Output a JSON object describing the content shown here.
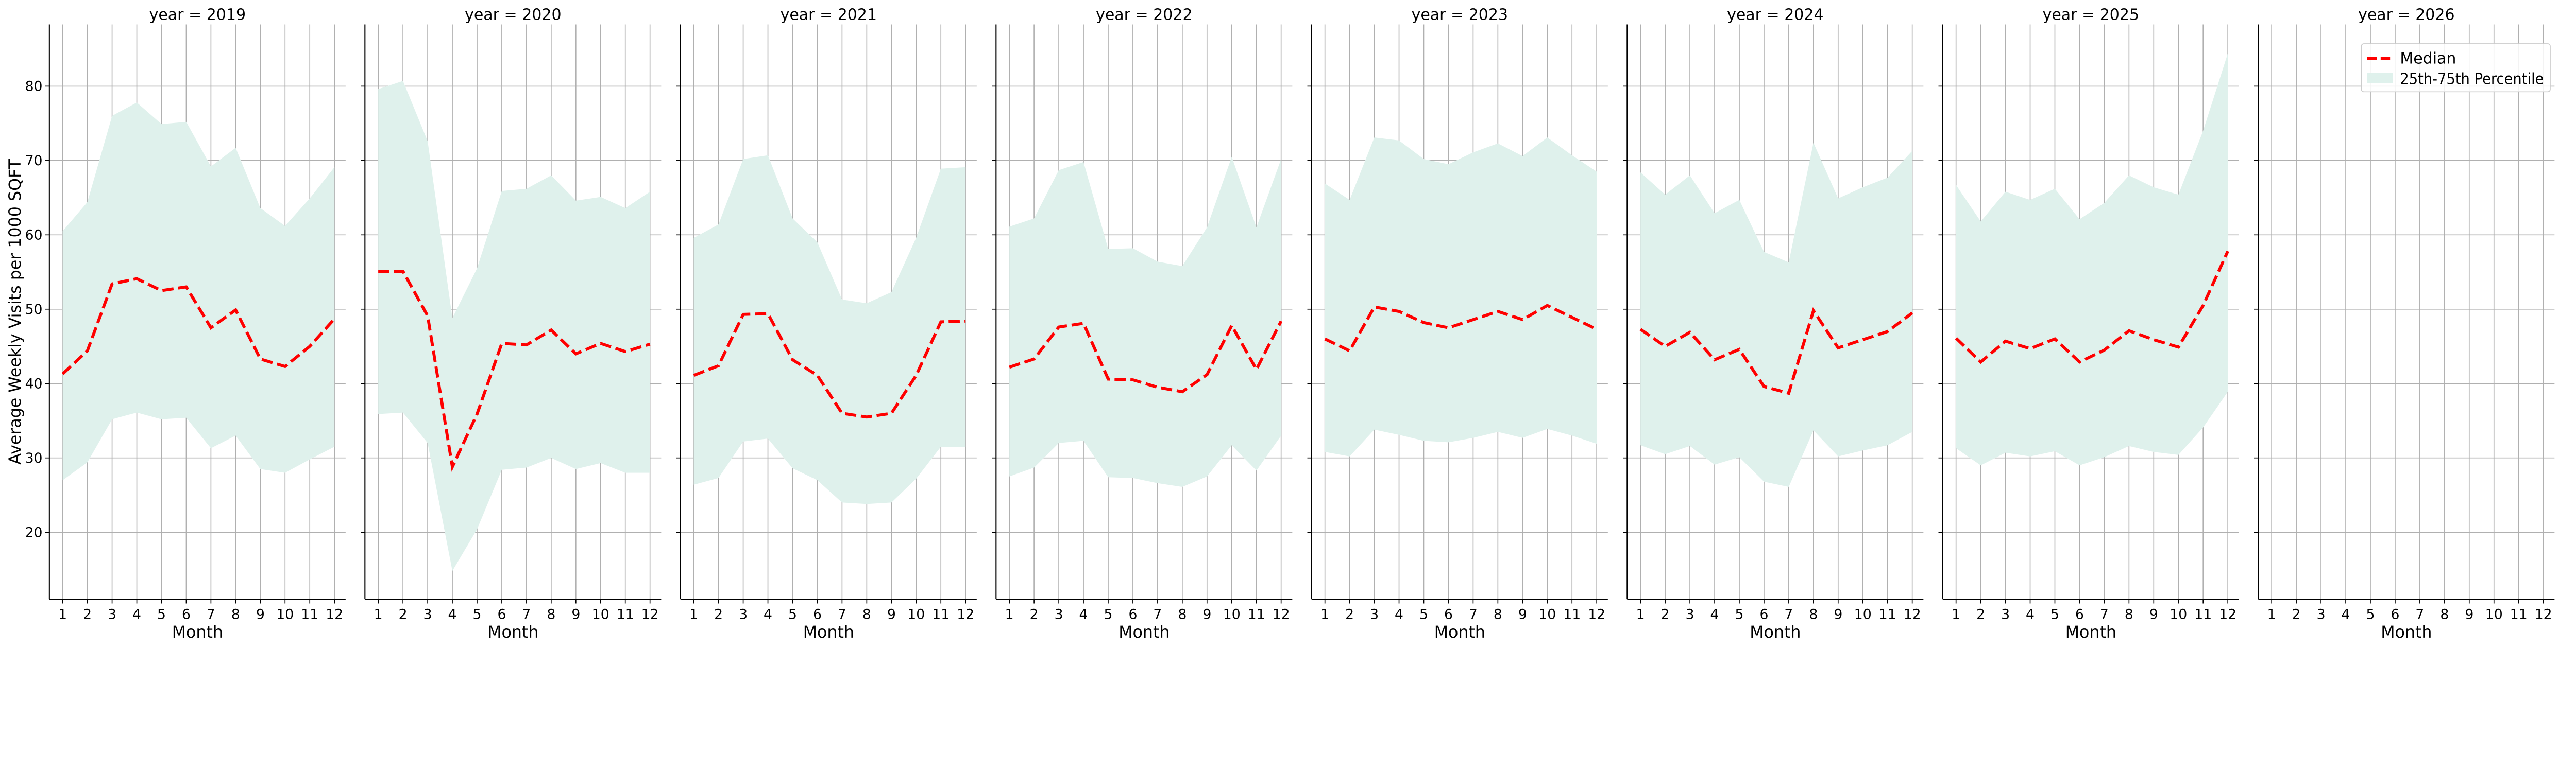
{
  "chart_data": {
    "type": "line",
    "ylabel": "Average Weekly Visits per 1000 SQFT",
    "xlabel": "Month",
    "ylim": [
      11,
      88.3
    ],
    "y_ticks": [
      "20",
      "30",
      "40",
      "50",
      "60",
      "70",
      "80"
    ],
    "x": [
      1,
      2,
      3,
      4,
      5,
      6,
      7,
      8,
      9,
      10,
      11,
      12
    ],
    "x_ticks": [
      "1",
      "2",
      "3",
      "4",
      "5",
      "6",
      "7",
      "8",
      "9",
      "10",
      "11",
      "12"
    ],
    "grid": true,
    "legend": {
      "position": "top-right",
      "median_label": "Median",
      "band_label": "25th-75th Percentile"
    },
    "colors": {
      "median": "#ff0000",
      "band": "#dff1ec"
    },
    "facets": [
      {
        "title": "year = 2019",
        "median": [
          41.3,
          44.4,
          53.4,
          54.1,
          52.5,
          53.0,
          47.5,
          49.9,
          43.3,
          42.3,
          45.0,
          48.7
        ],
        "p75": [
          60.5,
          64.4,
          76.0,
          77.8,
          74.9,
          75.2,
          69.2,
          71.7,
          63.6,
          61.2,
          64.9,
          69.1
        ],
        "p25": [
          27.0,
          29.4,
          35.2,
          36.1,
          35.2,
          35.4,
          31.3,
          33.0,
          28.5,
          28.0,
          29.8,
          31.5
        ]
      },
      {
        "title": "year = 2020",
        "median": [
          55.1,
          55.1,
          49.1,
          28.8,
          35.9,
          45.4,
          45.2,
          47.2,
          44.0,
          45.4,
          44.3,
          45.3
        ],
        "p75": [
          79.6,
          80.7,
          72.6,
          48.8,
          55.5,
          65.9,
          66.2,
          68.0,
          64.6,
          65.1,
          63.6,
          65.8
        ],
        "p25": [
          35.9,
          36.1,
          32.0,
          14.8,
          20.4,
          28.4,
          28.7,
          30.0,
          28.5,
          29.3,
          28.0,
          28.0
        ]
      },
      {
        "title": "year = 2021",
        "median": [
          41.1,
          42.4,
          49.3,
          49.4,
          43.2,
          41.1,
          36.0,
          35.5,
          36.0,
          41.1,
          48.3,
          48.4
        ],
        "p75": [
          59.6,
          61.4,
          70.2,
          70.7,
          62.2,
          59.0,
          51.3,
          50.8,
          52.3,
          59.6,
          68.9,
          69.1
        ],
        "p25": [
          26.4,
          27.3,
          32.2,
          32.6,
          28.6,
          27.0,
          24.0,
          23.8,
          24.0,
          27.2,
          31.5,
          31.5
        ]
      },
      {
        "title": "year = 2022",
        "median": [
          42.2,
          43.3,
          47.6,
          48.1,
          40.6,
          40.5,
          39.5,
          38.9,
          41.2,
          47.8,
          41.9,
          48.4
        ],
        "p75": [
          61.1,
          62.2,
          68.7,
          69.8,
          58.1,
          58.2,
          56.4,
          55.8,
          61.0,
          70.5,
          61.0,
          70.2
        ],
        "p25": [
          27.5,
          28.7,
          32.0,
          32.3,
          27.4,
          27.3,
          26.6,
          26.1,
          27.5,
          31.7,
          28.3,
          33.0
        ]
      },
      {
        "title": "year = 2023",
        "median": [
          46.0,
          44.4,
          50.3,
          49.7,
          48.2,
          47.5,
          48.6,
          49.7,
          48.6,
          50.5,
          48.9,
          47.3
        ],
        "p75": [
          66.9,
          64.7,
          73.1,
          72.7,
          70.2,
          69.5,
          71.1,
          72.3,
          70.6,
          73.1,
          70.7,
          68.5
        ],
        "p25": [
          30.8,
          30.2,
          33.8,
          33.1,
          32.3,
          32.1,
          32.7,
          33.5,
          32.7,
          33.9,
          33.0,
          31.9
        ]
      },
      {
        "title": "year = 2024",
        "median": [
          47.3,
          45.0,
          46.9,
          43.2,
          44.6,
          39.6,
          38.7,
          49.8,
          44.8,
          45.9,
          47.0,
          49.5
        ],
        "p75": [
          68.4,
          65.4,
          68.0,
          62.9,
          64.7,
          57.7,
          56.3,
          72.4,
          64.9,
          66.4,
          67.7,
          71.3
        ],
        "p25": [
          31.7,
          30.5,
          31.6,
          29.1,
          30.1,
          26.8,
          26.1,
          33.7,
          30.2,
          31.0,
          31.7,
          33.5
        ]
      },
      {
        "title": "year = 2025",
        "median": [
          46.1,
          42.9,
          45.7,
          44.7,
          46.0,
          42.9,
          44.5,
          47.1,
          45.9,
          44.9,
          50.5,
          57.8
        ],
        "p75": [
          66.7,
          61.8,
          65.8,
          64.7,
          66.2,
          62.1,
          64.3,
          68.0,
          66.4,
          65.4,
          74.0,
          84.4
        ],
        "p25": [
          31.3,
          29.0,
          30.7,
          30.2,
          30.9,
          29.0,
          30.1,
          31.6,
          30.8,
          30.4,
          34.1,
          38.9
        ]
      },
      {
        "title": "year = 2026",
        "median": [],
        "p75": [],
        "p25": []
      }
    ]
  }
}
